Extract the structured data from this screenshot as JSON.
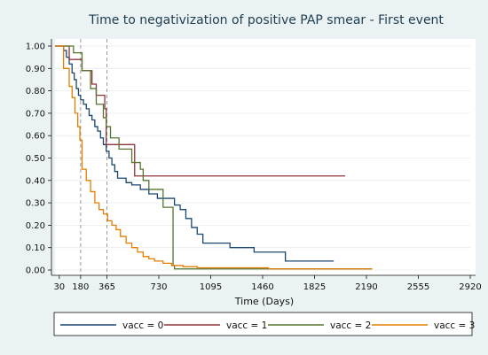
{
  "chart_data": {
    "type": "line",
    "step": "post",
    "title": "Time to negativization of positive PAP smear - First event",
    "xlabel": "Time (Days)",
    "ylabel": "",
    "xlim": [
      0,
      2920
    ],
    "ylim": [
      0,
      1
    ],
    "xticks": [
      30,
      180,
      365,
      730,
      1095,
      1460,
      1825,
      2190,
      2555,
      2920
    ],
    "yticks": [
      0.0,
      0.1,
      0.2,
      0.3,
      0.4,
      0.5,
      0.6,
      0.7,
      0.8,
      0.9,
      1.0
    ],
    "ytick_labels": [
      "0.00",
      "0.10",
      "0.20",
      "0.30",
      "0.40",
      "0.50",
      "0.60",
      "0.70",
      "0.80",
      "0.90",
      "1.00"
    ],
    "reference_lines_x": [
      180,
      365
    ],
    "legend_position": "bottom",
    "series": [
      {
        "name": "vacc = 0",
        "color": "#1a476f",
        "points": [
          [
            0,
            1.0
          ],
          [
            40,
            1.0
          ],
          [
            60,
            0.98
          ],
          [
            80,
            0.95
          ],
          [
            100,
            0.92
          ],
          [
            120,
            0.88
          ],
          [
            135,
            0.85
          ],
          [
            150,
            0.81
          ],
          [
            165,
            0.78
          ],
          [
            180,
            0.76
          ],
          [
            200,
            0.74
          ],
          [
            220,
            0.72
          ],
          [
            240,
            0.69
          ],
          [
            260,
            0.67
          ],
          [
            280,
            0.64
          ],
          [
            300,
            0.62
          ],
          [
            320,
            0.59
          ],
          [
            340,
            0.56
          ],
          [
            360,
            0.53
          ],
          [
            380,
            0.5
          ],
          [
            400,
            0.47
          ],
          [
            420,
            0.44
          ],
          [
            440,
            0.41
          ],
          [
            500,
            0.39
          ],
          [
            540,
            0.38
          ],
          [
            600,
            0.36
          ],
          [
            660,
            0.34
          ],
          [
            720,
            0.32
          ],
          [
            840,
            0.29
          ],
          [
            880,
            0.27
          ],
          [
            920,
            0.23
          ],
          [
            960,
            0.19
          ],
          [
            1000,
            0.16
          ],
          [
            1040,
            0.12
          ],
          [
            1200,
            0.12
          ],
          [
            1230,
            0.1
          ],
          [
            1380,
            0.1
          ],
          [
            1400,
            0.08
          ],
          [
            1600,
            0.08
          ],
          [
            1620,
            0.04
          ],
          [
            1960,
            0.04
          ]
        ]
      },
      {
        "name": "vacc = 1",
        "color": "#90353b",
        "points": [
          [
            0,
            1.0
          ],
          [
            90,
            1.0
          ],
          [
            100,
            0.94
          ],
          [
            180,
            0.94
          ],
          [
            190,
            0.89
          ],
          [
            250,
            0.89
          ],
          [
            260,
            0.83
          ],
          [
            280,
            0.83
          ],
          [
            290,
            0.78
          ],
          [
            340,
            0.78
          ],
          [
            350,
            0.72
          ],
          [
            360,
            0.56
          ],
          [
            540,
            0.56
          ],
          [
            560,
            0.42
          ],
          [
            2040,
            0.42
          ]
        ]
      },
      {
        "name": "vacc = 2",
        "color": "#55752f",
        "points": [
          [
            0,
            1.0
          ],
          [
            120,
            1.0
          ],
          [
            130,
            0.97
          ],
          [
            180,
            0.97
          ],
          [
            190,
            0.89
          ],
          [
            240,
            0.89
          ],
          [
            250,
            0.81
          ],
          [
            280,
            0.81
          ],
          [
            290,
            0.74
          ],
          [
            330,
            0.74
          ],
          [
            340,
            0.68
          ],
          [
            360,
            0.64
          ],
          [
            390,
            0.59
          ],
          [
            440,
            0.59
          ],
          [
            450,
            0.54
          ],
          [
            520,
            0.54
          ],
          [
            540,
            0.48
          ],
          [
            580,
            0.48
          ],
          [
            600,
            0.45
          ],
          [
            620,
            0.4
          ],
          [
            660,
            0.36
          ],
          [
            740,
            0.36
          ],
          [
            760,
            0.28
          ],
          [
            810,
            0.28
          ],
          [
            830,
            0.02
          ],
          [
            840,
            0.005
          ],
          [
            2230,
            0.005
          ]
        ]
      },
      {
        "name": "vacc = 3",
        "color": "#e37e00",
        "points": [
          [
            0,
            1.0
          ],
          [
            55,
            1.0
          ],
          [
            60,
            0.9
          ],
          [
            95,
            0.9
          ],
          [
            100,
            0.82
          ],
          [
            115,
            0.82
          ],
          [
            120,
            0.77
          ],
          [
            135,
            0.77
          ],
          [
            140,
            0.7
          ],
          [
            160,
            0.64
          ],
          [
            175,
            0.58
          ],
          [
            190,
            0.45
          ],
          [
            220,
            0.4
          ],
          [
            250,
            0.35
          ],
          [
            280,
            0.3
          ],
          [
            310,
            0.27
          ],
          [
            340,
            0.25
          ],
          [
            370,
            0.22
          ],
          [
            400,
            0.2
          ],
          [
            430,
            0.18
          ],
          [
            460,
            0.15
          ],
          [
            500,
            0.12
          ],
          [
            540,
            0.1
          ],
          [
            580,
            0.08
          ],
          [
            620,
            0.06
          ],
          [
            660,
            0.05
          ],
          [
            700,
            0.04
          ],
          [
            760,
            0.03
          ],
          [
            820,
            0.02
          ],
          [
            900,
            0.015
          ],
          [
            1000,
            0.01
          ],
          [
            1200,
            0.01
          ],
          [
            1500,
            0.005
          ],
          [
            2230,
            0.005
          ]
        ]
      }
    ]
  }
}
